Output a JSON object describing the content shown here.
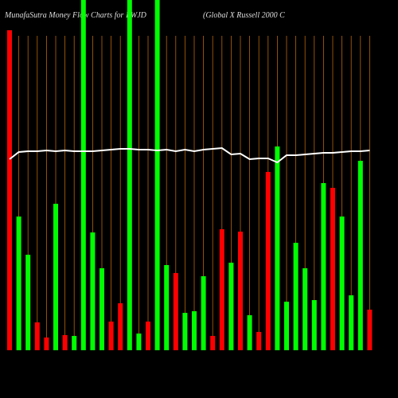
{
  "chart_data": {
    "type": "bar",
    "title": "MunafaSutra  Money Flow  Charts for RWJD",
    "subtitle": "(Global X  Russell 2000  C",
    "values": [
      402,
      168,
      120,
      35,
      16,
      184,
      19,
      18,
      440,
      148,
      103,
      36,
      59,
      440,
      21,
      36,
      440,
      107,
      97,
      47,
      49,
      93,
      18,
      152,
      110,
      149,
      44,
      23,
      224,
      256,
      61,
      135,
      103,
      63,
      210,
      204,
      168,
      69,
      238,
      51
    ],
    "colors": [
      "#ff0000",
      "#00ff00",
      "#00ff00",
      "#ff0000",
      "#ff0000",
      "#00ff00",
      "#ff0000",
      "#00ff00",
      "#00ff00",
      "#00ff00",
      "#00ff00",
      "#ff0000",
      "#ff0000",
      "#00ff00",
      "#00ff00",
      "#ff0000",
      "#00ff00",
      "#00ff00",
      "#ff0000",
      "#00ff00",
      "#00ff00",
      "#00ff00",
      "#ff0000",
      "#ff0000",
      "#00ff00",
      "#ff0000",
      "#00ff00",
      "#ff0000",
      "#ff0000",
      "#00ff00",
      "#00ff00",
      "#00ff00",
      "#00ff00",
      "#00ff00",
      "#00ff00",
      "#ff0000",
      "#00ff00",
      "#00ff00",
      "#00ff00",
      "#ff0000"
    ],
    "line": {
      "color": "#ffffff",
      "values": [
        240,
        249,
        250,
        250,
        251,
        250,
        251,
        250,
        250,
        250,
        251,
        252,
        253,
        253,
        252,
        252,
        251,
        252,
        250,
        252,
        250,
        252,
        253,
        254,
        246,
        247,
        240,
        241,
        241,
        236,
        245,
        245,
        246,
        247,
        248,
        248,
        249,
        250,
        250,
        251
      ]
    },
    "ylim": [
      0,
      440
    ]
  }
}
